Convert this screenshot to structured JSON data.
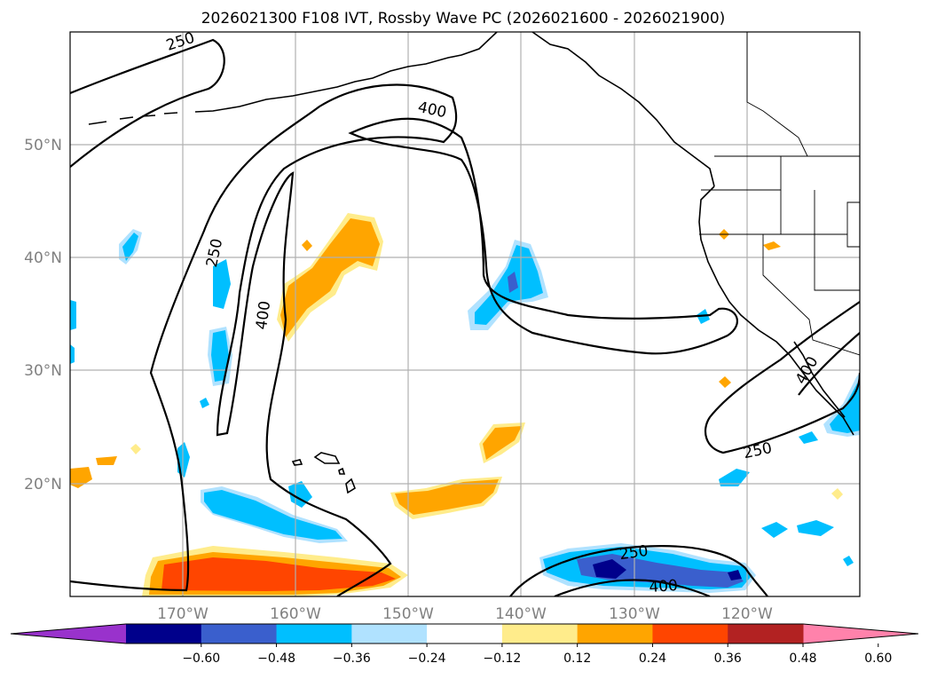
{
  "title": "2026021300 F108 IVT, Rossby Wave PC (2026021600 - 2026021900)",
  "axes": {
    "longitude_labels": [
      "170°W",
      "160°W",
      "150°W",
      "140°W",
      "130°W",
      "120°W"
    ],
    "latitude_labels": [
      "50°N",
      "40°N",
      "30°N",
      "20°N"
    ],
    "grid": true
  },
  "contours": {
    "levels": [
      250,
      400
    ],
    "labels": [
      "250",
      "400",
      "250",
      "400",
      "250",
      "400",
      "250",
      "400"
    ]
  },
  "colorbar": {
    "ticks": [
      "−0.60",
      "−0.48",
      "−0.36",
      "−0.24",
      "−0.12",
      "0.12",
      "0.24",
      "0.36",
      "0.48",
      "0.60"
    ],
    "colors": [
      "#9932cc",
      "#00008b",
      "#3a5fcd",
      "#00bfff",
      "#b0e2ff",
      "#ffffff",
      "#ffec8b",
      "#ffa500",
      "#ff4500",
      "#b22222",
      "#ff82ab"
    ],
    "extend": "both"
  },
  "colors": {
    "coast": "#000000",
    "grid": "#b0b0b0"
  }
}
